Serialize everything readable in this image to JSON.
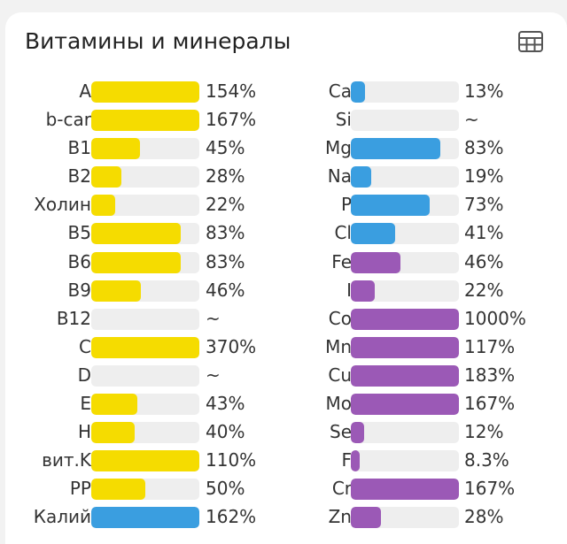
{
  "card": {
    "title": "Витамины и минералы",
    "table_icon": "table-grid-icon"
  },
  "colors": {
    "vitamin": "#f5dc00",
    "mineral_blue": "#3a9ee0",
    "mineral_purple": "#9b59b6",
    "track": "#eeeeee"
  },
  "left": [
    {
      "label": "A",
      "pct": "154%",
      "fill": 1.0,
      "color": "#f5dc00"
    },
    {
      "label": "b-car",
      "pct": "167%",
      "fill": 1.0,
      "color": "#f5dc00"
    },
    {
      "label": "B1",
      "pct": "45%",
      "fill": 0.45,
      "color": "#f5dc00"
    },
    {
      "label": "B2",
      "pct": "28%",
      "fill": 0.28,
      "color": "#f5dc00"
    },
    {
      "label": "Холин",
      "pct": "22%",
      "fill": 0.22,
      "color": "#f5dc00"
    },
    {
      "label": "B5",
      "pct": "83%",
      "fill": 0.83,
      "color": "#f5dc00"
    },
    {
      "label": "B6",
      "pct": "83%",
      "fill": 0.83,
      "color": "#f5dc00"
    },
    {
      "label": "B9",
      "pct": "46%",
      "fill": 0.46,
      "color": "#f5dc00"
    },
    {
      "label": "B12",
      "pct": "~",
      "fill": 0,
      "color": "#f5dc00"
    },
    {
      "label": "C",
      "pct": "370%",
      "fill": 1.0,
      "color": "#f5dc00"
    },
    {
      "label": "D",
      "pct": "~",
      "fill": 0,
      "color": "#f5dc00"
    },
    {
      "label": "E",
      "pct": "43%",
      "fill": 0.43,
      "color": "#f5dc00"
    },
    {
      "label": "H",
      "pct": "40%",
      "fill": 0.4,
      "color": "#f5dc00"
    },
    {
      "label": "вит.K",
      "pct": "110%",
      "fill": 1.0,
      "color": "#f5dc00"
    },
    {
      "label": "PP",
      "pct": "50%",
      "fill": 0.5,
      "color": "#f5dc00"
    },
    {
      "label": "Калий",
      "pct": "162%",
      "fill": 1.0,
      "color": "#3a9ee0"
    }
  ],
  "right": [
    {
      "label": "Ca",
      "pct": "13%",
      "fill": 0.13,
      "color": "#3a9ee0"
    },
    {
      "label": "Si",
      "pct": "~",
      "fill": 0,
      "color": "#3a9ee0"
    },
    {
      "label": "Mg",
      "pct": "83%",
      "fill": 0.83,
      "color": "#3a9ee0"
    },
    {
      "label": "Na",
      "pct": "19%",
      "fill": 0.19,
      "color": "#3a9ee0"
    },
    {
      "label": "P",
      "pct": "73%",
      "fill": 0.73,
      "color": "#3a9ee0"
    },
    {
      "label": "Cl",
      "pct": "41%",
      "fill": 0.41,
      "color": "#3a9ee0"
    },
    {
      "label": "Fe",
      "pct": "46%",
      "fill": 0.46,
      "color": "#9b59b6"
    },
    {
      "label": "I",
      "pct": "22%",
      "fill": 0.22,
      "color": "#9b59b6"
    },
    {
      "label": "Co",
      "pct": "1000%",
      "fill": 1.0,
      "color": "#9b59b6"
    },
    {
      "label": "Mn",
      "pct": "117%",
      "fill": 1.0,
      "color": "#9b59b6"
    },
    {
      "label": "Cu",
      "pct": "183%",
      "fill": 1.0,
      "color": "#9b59b6"
    },
    {
      "label": "Mo",
      "pct": "167%",
      "fill": 1.0,
      "color": "#9b59b6"
    },
    {
      "label": "Se",
      "pct": "12%",
      "fill": 0.12,
      "color": "#9b59b6"
    },
    {
      "label": "F",
      "pct": "8.3%",
      "fill": 0.083,
      "color": "#9b59b6"
    },
    {
      "label": "Cr",
      "pct": "167%",
      "fill": 1.0,
      "color": "#9b59b6"
    },
    {
      "label": "Zn",
      "pct": "28%",
      "fill": 0.28,
      "color": "#9b59b6"
    }
  ]
}
